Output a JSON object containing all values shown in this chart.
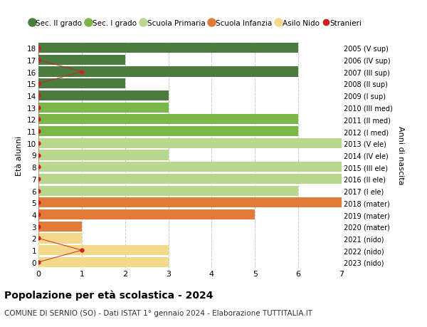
{
  "ages": [
    18,
    17,
    16,
    15,
    14,
    13,
    12,
    11,
    10,
    9,
    8,
    7,
    6,
    5,
    4,
    3,
    2,
    1,
    0
  ],
  "right_labels": [
    "2005 (V sup)",
    "2006 (IV sup)",
    "2007 (III sup)",
    "2008 (II sup)",
    "2009 (I sup)",
    "2010 (III med)",
    "2011 (II med)",
    "2012 (I med)",
    "2013 (V ele)",
    "2014 (IV ele)",
    "2015 (III ele)",
    "2016 (II ele)",
    "2017 (I ele)",
    "2018 (mater)",
    "2019 (mater)",
    "2020 (mater)",
    "2021 (nido)",
    "2022 (nido)",
    "2023 (nido)"
  ],
  "bar_values": [
    6,
    2,
    6,
    2,
    3,
    3,
    6,
    6,
    7,
    3,
    7,
    7,
    6,
    7,
    5,
    1,
    1,
    3,
    3
  ],
  "bar_colors": [
    "#4a7c3f",
    "#4a7c3f",
    "#4a7c3f",
    "#4a7c3f",
    "#4a7c3f",
    "#7ab648",
    "#7ab648",
    "#7ab648",
    "#b8d98d",
    "#b8d98d",
    "#b8d98d",
    "#b8d98d",
    "#b8d98d",
    "#e07b39",
    "#e07b39",
    "#e07b39",
    "#f5d98b",
    "#f5d98b",
    "#f5d98b"
  ],
  "stranieri_x": [
    0,
    0,
    1,
    0,
    0,
    0,
    0,
    0,
    0,
    0,
    0,
    0,
    0,
    0,
    0,
    0,
    0,
    1,
    0
  ],
  "legend_labels": [
    "Sec. II grado",
    "Sec. I grado",
    "Scuola Primaria",
    "Scuola Infanzia",
    "Asilo Nido",
    "Stranieri"
  ],
  "legend_colors": [
    "#4a7c3f",
    "#7ab648",
    "#b8d98d",
    "#e07b39",
    "#f5d98b",
    "#cc2222"
  ],
  "ylabel": "Età alunni",
  "right_ylabel": "Anni di nascita",
  "title": "Popolazione per età scolastica - 2024",
  "subtitle": "COMUNE DI SERNIO (SO) - Dati ISTAT 1° gennaio 2024 - Elaborazione TUTTITALIA.IT",
  "xlim": [
    0,
    7
  ],
  "ylim": [
    -0.5,
    18.5
  ],
  "bg_color": "#ffffff",
  "grid_color": "#cccccc",
  "bar_height": 0.85
}
